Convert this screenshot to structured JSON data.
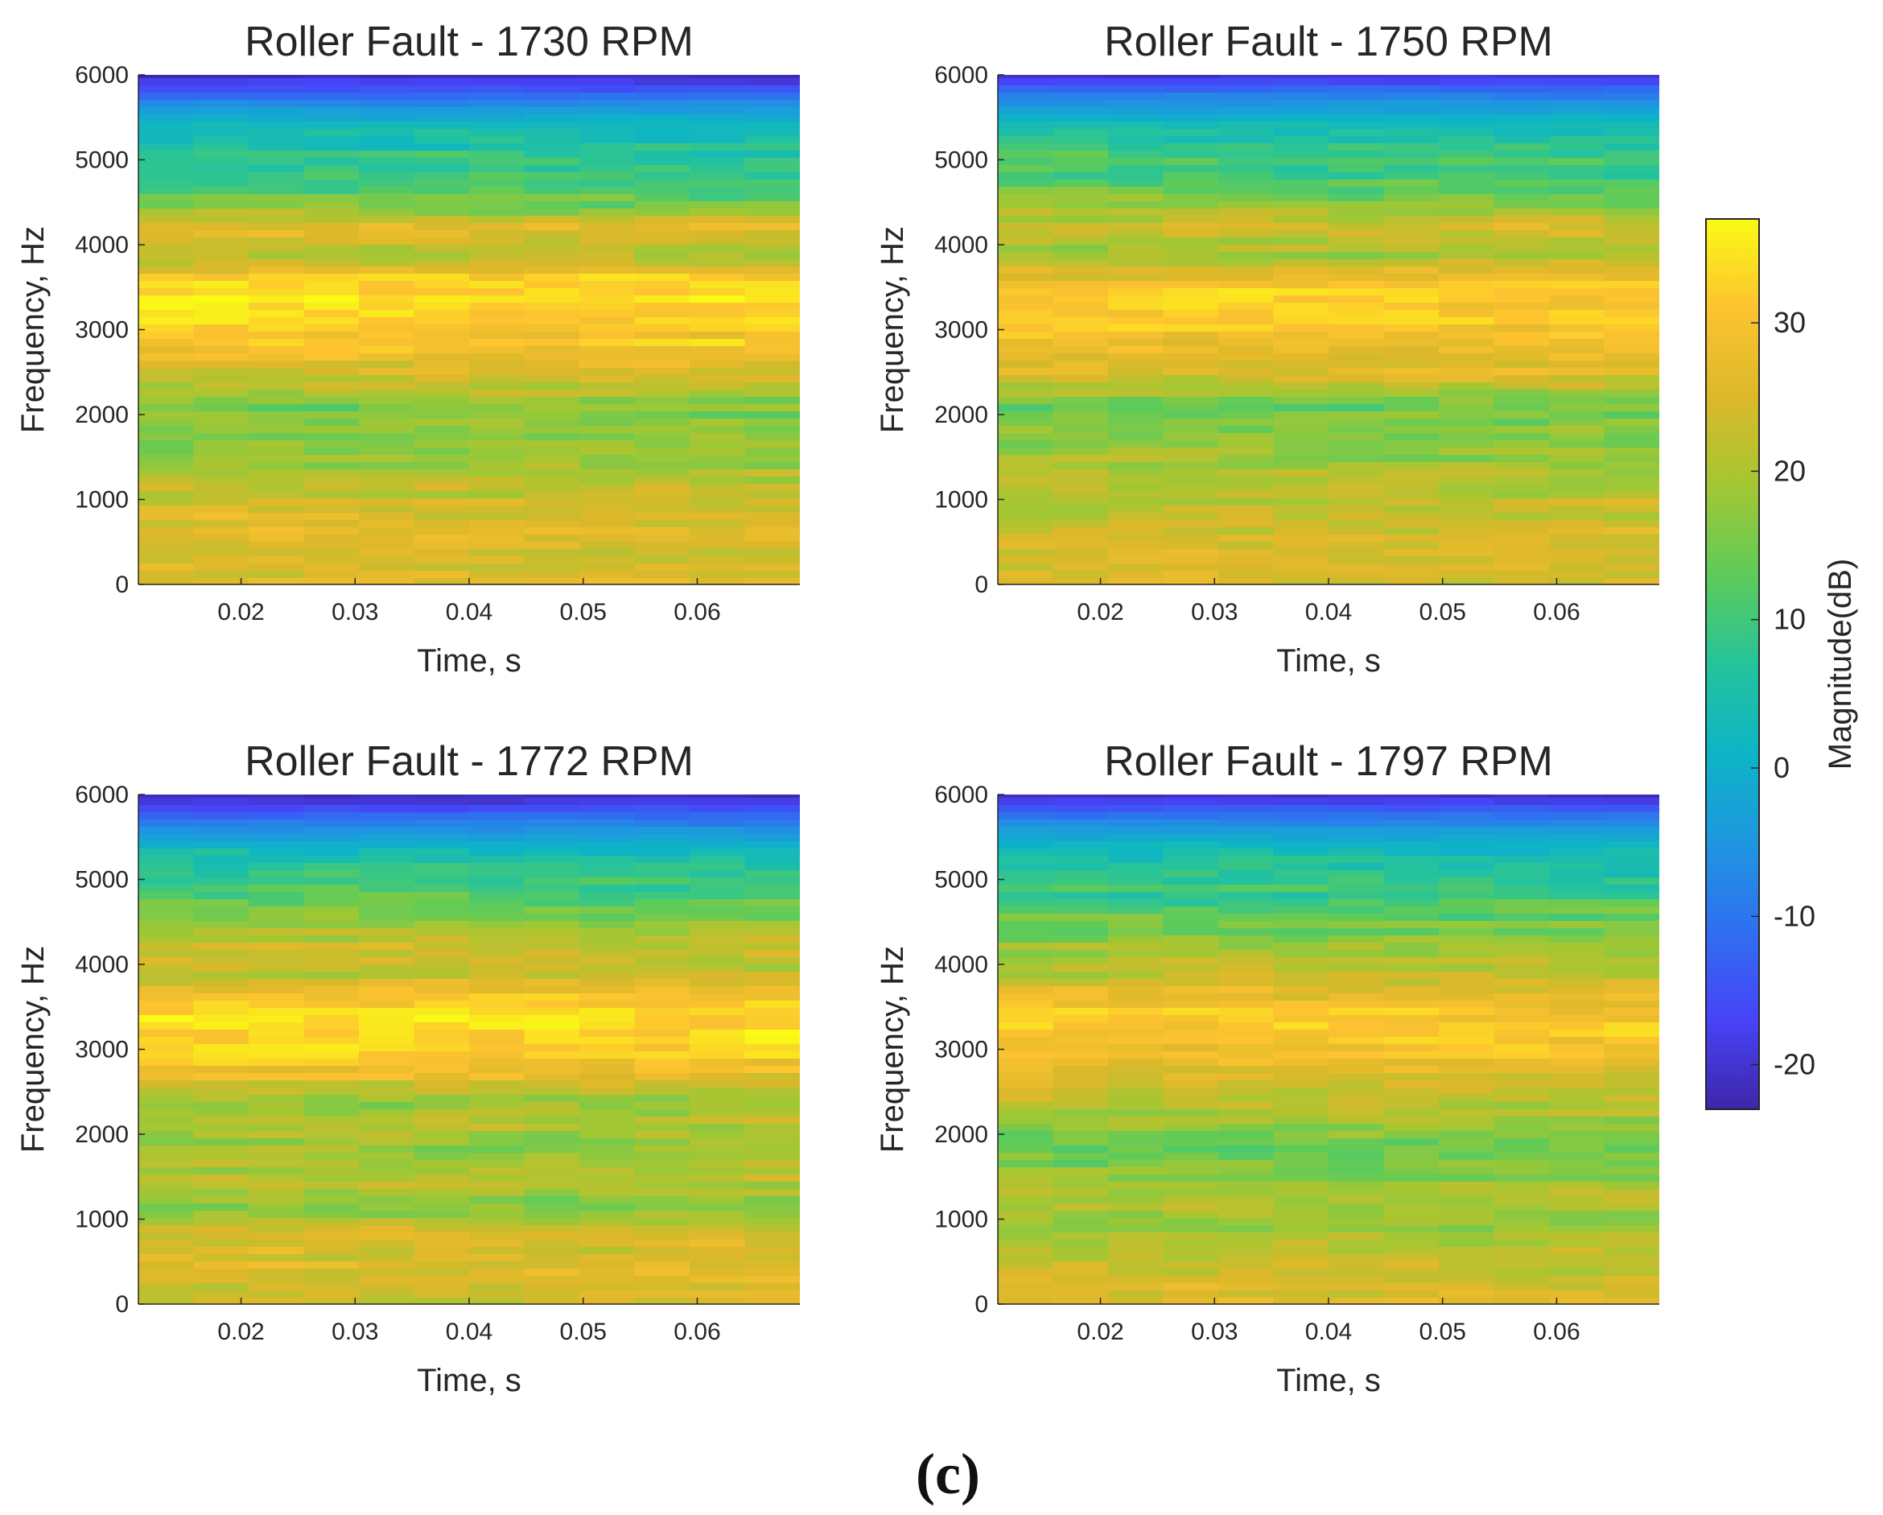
{
  "figure_label": "(c)",
  "colorbar": {
    "label": "Magnitude(dB)",
    "min": -23,
    "max": 37,
    "ticks": [
      -20,
      -10,
      0,
      10,
      20,
      30
    ],
    "tick_labels": [
      "-20",
      "-10",
      "0",
      "10",
      "20",
      "30"
    ],
    "colormap": [
      "#3e26a8",
      "#4743f7",
      "#2f6ff1",
      "#1e97e0",
      "#0db4c6",
      "#25c39c",
      "#5ecb59",
      "#a3c733",
      "#dcb82a",
      "#fdc330",
      "#f9fb15"
    ]
  },
  "chart_data": [
    {
      "type": "heatmap",
      "title": "Roller Fault - 1730 RPM",
      "xlabel": "Time, s",
      "ylabel": "Frequency, Hz",
      "xlim": [
        0.011,
        0.069
      ],
      "ylim": [
        0,
        6000
      ],
      "xticks": [
        0.02,
        0.03,
        0.04,
        0.05,
        0.06
      ],
      "xtick_labels": [
        "0.02",
        "0.03",
        "0.04",
        "0.05",
        "0.06"
      ],
      "yticks": [
        0,
        1000,
        2000,
        3000,
        4000,
        5000,
        6000
      ],
      "ytick_labels": [
        "0",
        "1000",
        "2000",
        "3000",
        "4000",
        "5000",
        "6000"
      ],
      "frequency_profile_hz": [
        0,
        300,
        600,
        900,
        1200,
        1500,
        1800,
        2100,
        2400,
        2700,
        3000,
        3300,
        3600,
        3900,
        4200,
        4500,
        4800,
        5100,
        5400,
        5700,
        6000
      ],
      "magnitude_profile_db": [
        25,
        24,
        26,
        24,
        22,
        16,
        18,
        15,
        24,
        28,
        31,
        35,
        32,
        18,
        27,
        14,
        10,
        8,
        3,
        -8,
        -22
      ]
    },
    {
      "type": "heatmap",
      "title": "Roller Fault - 1750 RPM",
      "xlabel": "Time, s",
      "ylabel": "Frequency, Hz",
      "xlim": [
        0.011,
        0.069
      ],
      "ylim": [
        0,
        6000
      ],
      "xticks": [
        0.02,
        0.03,
        0.04,
        0.05,
        0.06
      ],
      "xtick_labels": [
        "0.02",
        "0.03",
        "0.04",
        "0.05",
        "0.06"
      ],
      "yticks": [
        0,
        1000,
        2000,
        3000,
        4000,
        5000,
        6000
      ],
      "ytick_labels": [
        "0",
        "1000",
        "2000",
        "3000",
        "4000",
        "5000",
        "6000"
      ],
      "frequency_profile_hz": [
        0,
        300,
        600,
        900,
        1200,
        1500,
        1800,
        2100,
        2400,
        2700,
        3000,
        3300,
        3600,
        3900,
        4200,
        4500,
        4800,
        5100,
        5400,
        5700,
        6000
      ],
      "magnitude_profile_db": [
        24,
        25,
        24,
        22,
        20,
        19,
        16,
        15,
        23,
        27,
        30,
        32,
        29,
        19,
        25,
        16,
        11,
        9,
        4,
        -6,
        -20
      ]
    },
    {
      "type": "heatmap",
      "title": "Roller Fault - 1772 RPM",
      "xlabel": "Time, s",
      "ylabel": "Frequency, Hz",
      "xlim": [
        0.011,
        0.069
      ],
      "ylim": [
        0,
        6000
      ],
      "xticks": [
        0.02,
        0.03,
        0.04,
        0.05,
        0.06
      ],
      "xtick_labels": [
        "0.02",
        "0.03",
        "0.04",
        "0.05",
        "0.06"
      ],
      "yticks": [
        0,
        1000,
        2000,
        3000,
        4000,
        5000,
        6000
      ],
      "ytick_labels": [
        "0",
        "1000",
        "2000",
        "3000",
        "4000",
        "5000",
        "6000"
      ],
      "frequency_profile_hz": [
        0,
        300,
        600,
        900,
        1200,
        1500,
        1800,
        2100,
        2400,
        2700,
        3000,
        3300,
        3600,
        3900,
        4200,
        4500,
        4800,
        5100,
        5400,
        5700,
        6000
      ],
      "magnitude_profile_db": [
        22,
        26,
        25,
        23,
        16,
        22,
        17,
        21,
        17,
        28,
        32,
        34,
        31,
        20,
        24,
        17,
        11,
        8,
        1,
        -10,
        -22
      ]
    },
    {
      "type": "heatmap",
      "title": "Roller Fault - 1797 RPM",
      "xlabel": "Time, s",
      "ylabel": "Frequency, Hz",
      "xlim": [
        0.011,
        0.069
      ],
      "ylim": [
        0,
        6000
      ],
      "xticks": [
        0.02,
        0.03,
        0.04,
        0.05,
        0.06
      ],
      "xtick_labels": [
        "0.02",
        "0.03",
        "0.04",
        "0.05",
        "0.06"
      ],
      "yticks": [
        0,
        1000,
        2000,
        3000,
        4000,
        5000,
        6000
      ],
      "ytick_labels": [
        "0",
        "1000",
        "2000",
        "3000",
        "4000",
        "5000",
        "6000"
      ],
      "frequency_profile_hz": [
        0,
        300,
        600,
        900,
        1200,
        1500,
        1800,
        2100,
        2400,
        2700,
        3000,
        3300,
        3600,
        3900,
        4200,
        4500,
        4800,
        5100,
        5400,
        5700,
        6000
      ],
      "magnitude_profile_db": [
        25,
        24,
        23,
        17,
        21,
        17,
        14,
        18,
        21,
        26,
        29,
        32,
        28,
        22,
        18,
        14,
        10,
        7,
        2,
        -8,
        -21
      ]
    }
  ]
}
